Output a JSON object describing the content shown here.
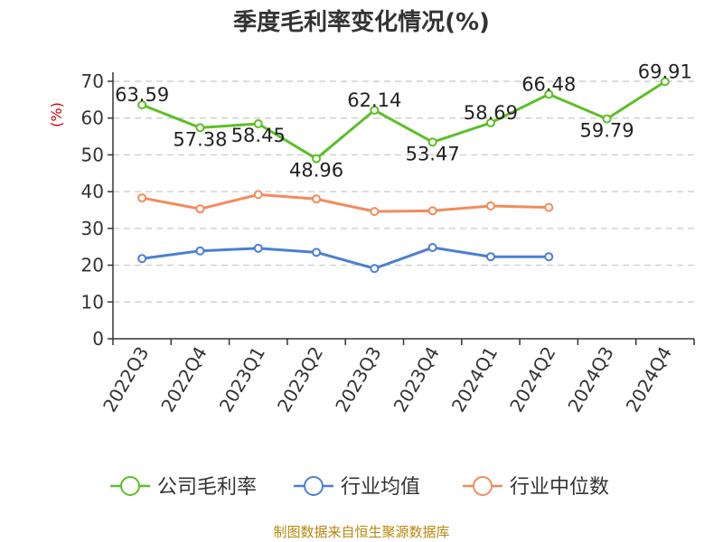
{
  "chart_data": {
    "type": "line",
    "title": "季度毛利率变化情况(%)",
    "ylabel": "(%)",
    "ylim": [
      0,
      70
    ],
    "yticks": [
      0,
      10,
      20,
      30,
      40,
      50,
      60,
      70
    ],
    "grid": true,
    "legend_position": "bottom",
    "categories": [
      "2022Q3",
      "2022Q4",
      "2023Q1",
      "2023Q2",
      "2023Q3",
      "2023Q4",
      "2024Q1",
      "2024Q2",
      "2024Q3",
      "2024Q4"
    ],
    "series": [
      {
        "name": "公司毛利率",
        "color": "#5cbf26",
        "values": [
          63.59,
          57.38,
          58.45,
          48.96,
          62.14,
          53.47,
          58.69,
          66.48,
          59.79,
          69.91
        ],
        "labels": [
          "63.59",
          "57.38",
          "58.45",
          "48.96",
          "62.14",
          "53.47",
          "58.69",
          "66.48",
          "59.79",
          "69.91"
        ]
      },
      {
        "name": "行业均值",
        "color": "#4a7fd4",
        "values": [
          21.8,
          23.9,
          24.6,
          23.5,
          19.1,
          24.8,
          22.3,
          22.3,
          null,
          null
        ]
      },
      {
        "name": "行业中位数",
        "color": "#f28b5b",
        "values": [
          38.3,
          35.3,
          39.2,
          38.0,
          34.6,
          34.8,
          36.1,
          35.7,
          null,
          null
        ]
      }
    ]
  },
  "source": "制图数据来自恒生聚源数据库"
}
